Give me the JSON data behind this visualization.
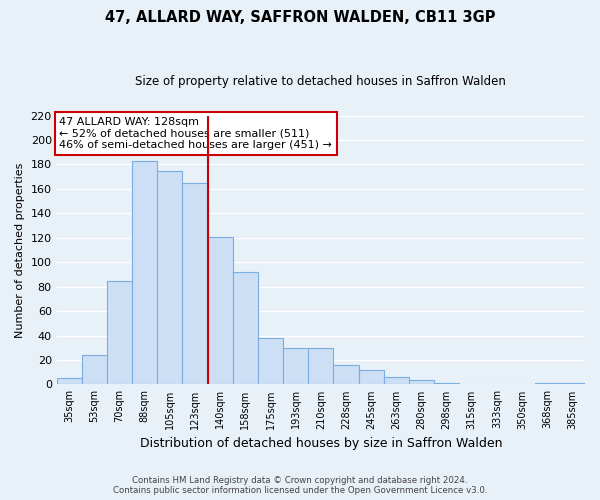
{
  "title": "47, ALLARD WAY, SAFFRON WALDEN, CB11 3GP",
  "subtitle": "Size of property relative to detached houses in Saffron Walden",
  "xlabel": "Distribution of detached houses by size in Saffron Walden",
  "ylabel": "Number of detached properties",
  "categories": [
    "35sqm",
    "53sqm",
    "70sqm",
    "88sqm",
    "105sqm",
    "123sqm",
    "140sqm",
    "158sqm",
    "175sqm",
    "193sqm",
    "210sqm",
    "228sqm",
    "245sqm",
    "263sqm",
    "280sqm",
    "298sqm",
    "315sqm",
    "333sqm",
    "350sqm",
    "368sqm",
    "385sqm"
  ],
  "values": [
    5,
    24,
    85,
    183,
    175,
    165,
    121,
    92,
    38,
    30,
    30,
    16,
    12,
    6,
    4,
    1,
    0,
    0,
    0,
    1,
    1
  ],
  "bar_color": "#ccdff5",
  "bar_edge_color": "#7aade0",
  "vline_x_index": 5.5,
  "vline_color": "#cc0000",
  "annotation_title": "47 ALLARD WAY: 128sqm",
  "annotation_line1": "← 52% of detached houses are smaller (511)",
  "annotation_line2": "46% of semi-detached houses are larger (451) →",
  "annotation_box_facecolor": "#ffffff",
  "annotation_box_edgecolor": "#cc0000",
  "ylim": [
    0,
    220
  ],
  "yticks": [
    0,
    20,
    40,
    60,
    80,
    100,
    120,
    140,
    160,
    180,
    200,
    220
  ],
  "footer_line1": "Contains HM Land Registry data © Crown copyright and database right 2024.",
  "footer_line2": "Contains public sector information licensed under the Open Government Licence v3.0.",
  "background_color": "#e8f0f8",
  "plot_bg_color": "#e8f0f8",
  "grid_color": "#ffffff"
}
